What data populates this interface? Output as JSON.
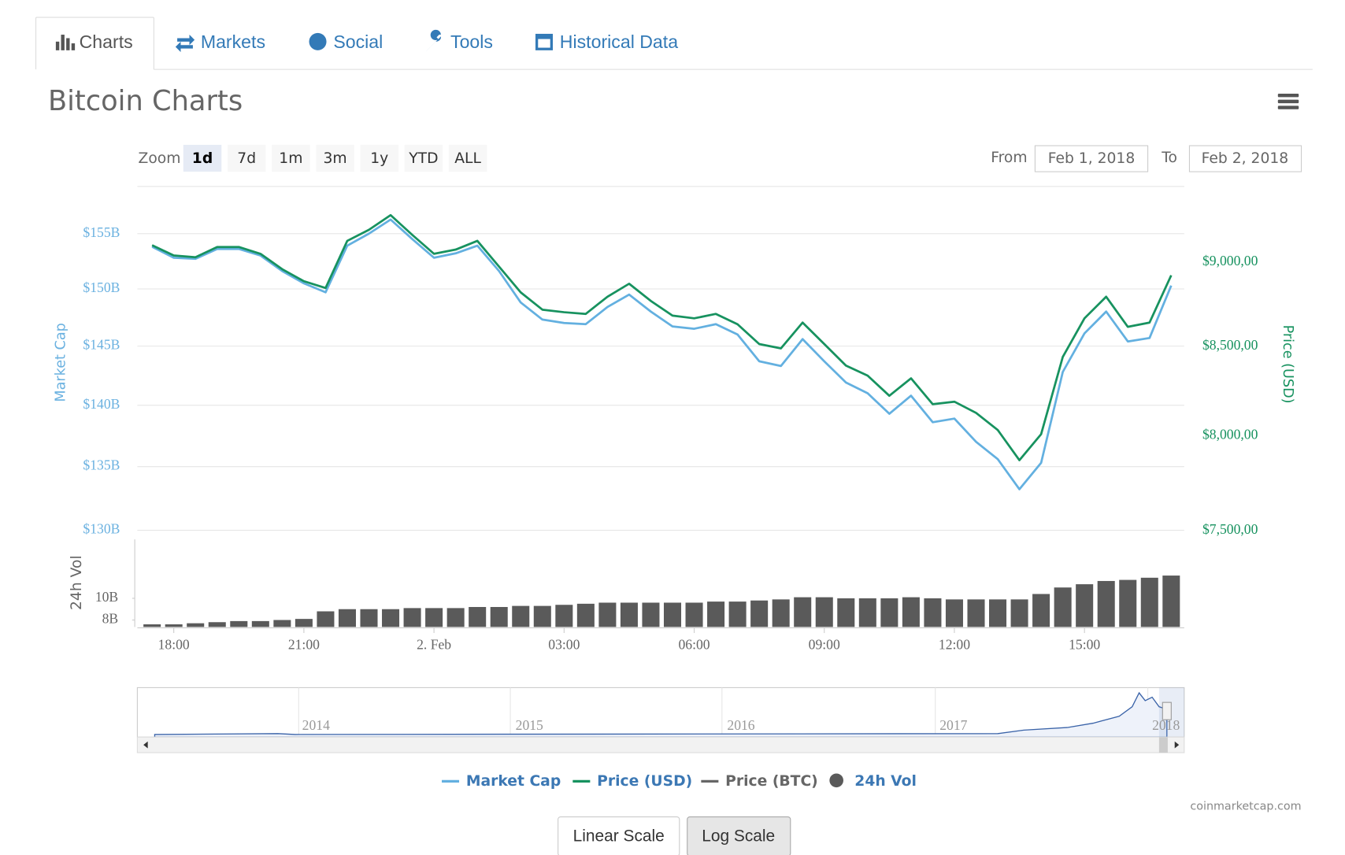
{
  "tabs": [
    "Charts",
    "Markets",
    "Social",
    "Tools",
    "Historical Data"
  ],
  "heading": "Bitcoin Charts",
  "zoom": {
    "label": "Zoom",
    "options": [
      "1d",
      "7d",
      "1m",
      "3m",
      "1y",
      "YTD",
      "ALL"
    ]
  },
  "range": {
    "from_label": "From",
    "from": "Feb 1, 2018",
    "to_label": "To",
    "to": "Feb 2, 2018"
  },
  "chart_data": {
    "type": "line",
    "log_scale": true,
    "grid": true,
    "ylabel": "Market Cap",
    "y2label": "Price (USD)",
    "y3label": "24h Vol",
    "categories": [
      null,
      "18:00",
      null,
      null,
      null,
      null,
      null,
      "21:00",
      null,
      null,
      null,
      null,
      null,
      "2. Feb",
      null,
      null,
      null,
      null,
      null,
      "03:00",
      null,
      null,
      null,
      null,
      null,
      "06:00",
      null,
      null,
      null,
      null,
      null,
      "09:00",
      null,
      null,
      null,
      null,
      null,
      "12:00",
      null,
      null,
      null,
      null,
      null,
      "15:00",
      null,
      null,
      null,
      null
    ],
    "ylim": [
      129300000000,
      159400000000
    ],
    "yticks": [
      {
        "value": 130000000000,
        "label": "$130B"
      },
      {
        "value": 135000000000,
        "label": "$135B"
      },
      {
        "value": 140000000000,
        "label": "$140B"
      },
      {
        "value": 145000000000,
        "label": "$145B"
      },
      {
        "value": 150000000000,
        "label": "$150B"
      },
      {
        "value": 155000000000,
        "label": "$155B"
      }
    ],
    "y2lim": [
      7456,
      9476
    ],
    "y2ticks": [
      {
        "value": 7500,
        "label": "$7,500,00"
      },
      {
        "value": 8000,
        "label": "$8,000,00"
      },
      {
        "value": 8500,
        "label": "$8,500,00"
      },
      {
        "value": 9000,
        "label": "$9,000,00"
      }
    ],
    "y3lim": [
      7360000000,
      15440000000
    ],
    "y3ticks": [
      {
        "value": 8000000000,
        "label": "8B"
      },
      {
        "value": 10000000000,
        "label": "10B"
      }
    ],
    "series": [
      {
        "name": "Market Cap",
        "color": "#63b0e0",
        "values": [
          153800000000,
          152800000000,
          152700000000,
          153600000000,
          153600000000,
          153000000000,
          151600000000,
          150500000000,
          149700000000,
          153900000000,
          155000000000,
          156300000000,
          154500000000,
          152800000000,
          153200000000,
          153900000000,
          151600000000,
          148800000000,
          147300000000,
          147000000000,
          146900000000,
          148400000000,
          149500000000,
          148000000000,
          146700000000,
          146500000000,
          146900000000,
          146000000000,
          143700000000,
          143300000000,
          145600000000,
          143700000000,
          141900000000,
          141000000000,
          139300000000,
          140800000000,
          138600000000,
          138900000000,
          137000000000,
          135600000000,
          133200000000,
          135300000000,
          142800000000,
          146100000000,
          148000000000,
          145400000000,
          145700000000,
          150300000000
        ]
      },
      {
        "name": "Price (USD)",
        "color": "#17925f",
        "axis": "y2",
        "values": [
          9105,
          9042,
          9031,
          9094,
          9094,
          9052,
          8958,
          8885,
          8844,
          9132,
          9201,
          9293,
          9169,
          9052,
          9078,
          9132,
          8974,
          8818,
          8715,
          8700,
          8690,
          8792,
          8870,
          8767,
          8680,
          8664,
          8690,
          8629,
          8514,
          8489,
          8639,
          8514,
          8390,
          8333,
          8220,
          8318,
          8173,
          8187,
          8125,
          8031,
          7868,
          8008,
          8440,
          8664,
          8792,
          8614,
          8639,
          8921
        ]
      },
      {
        "name": "Price (BTC)",
        "color": "#666666",
        "visible": false
      },
      {
        "name": "24h Vol",
        "color": "#5a5a5a",
        "type": "bar",
        "axis": "y3",
        "values": [
          7600000000,
          7600000000,
          7700000000,
          7800000000,
          7900000000,
          7900000000,
          8000000000,
          8100000000,
          8800000000,
          9000000000,
          9000000000,
          9000000000,
          9100000000,
          9100000000,
          9100000000,
          9200000000,
          9200000000,
          9300000000,
          9300000000,
          9400000000,
          9500000000,
          9600000000,
          9600000000,
          9600000000,
          9600000000,
          9600000000,
          9700000000,
          9700000000,
          9800000000,
          9900000000,
          10100000000,
          10100000000,
          10000000000,
          10000000000,
          10000000000,
          10100000000,
          10000000000,
          9900000000,
          9900000000,
          9900000000,
          9900000000,
          10400000000,
          11000000000,
          11300000000,
          11600000000,
          11700000000,
          11900000000,
          12100000000
        ]
      }
    ]
  },
  "navigator": {
    "labels": [
      "2014",
      "2015",
      "2016",
      "2017",
      "2018"
    ]
  },
  "credits": "coinmarketcap.com",
  "scale_buttons": [
    "Linear Scale",
    "Log Scale"
  ]
}
